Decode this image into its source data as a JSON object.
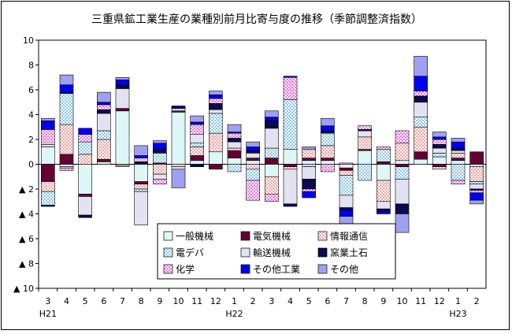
{
  "chart_data": {
    "type": "bar",
    "stacked": true,
    "title": "三重県鉱工業生産の業種別前月比寄与度の推移（季節調整済指数）",
    "categories": [
      "3",
      "4",
      "5",
      "6",
      "7",
      "8",
      "9",
      "10",
      "11",
      "12",
      "1",
      "2",
      "3",
      "4",
      "5",
      "6",
      "7",
      "8",
      "9",
      "10",
      "11",
      "12",
      "1",
      "2"
    ],
    "year_labels": [
      {
        "index": 0,
        "label": "H21"
      },
      {
        "index": 10,
        "label": "H22"
      },
      {
        "index": 22,
        "label": "H23"
      }
    ],
    "ylim": [
      -10,
      10
    ],
    "yticks": [
      {
        "value": 10,
        "label": "10"
      },
      {
        "value": 8,
        "label": "8"
      },
      {
        "value": 6,
        "label": "6"
      },
      {
        "value": 4,
        "label": "4"
      },
      {
        "value": 2,
        "label": "2"
      },
      {
        "value": 0,
        "label": "0"
      },
      {
        "value": -2,
        "label": "▲ 2"
      },
      {
        "value": -4,
        "label": "▲ 4"
      },
      {
        "value": -6,
        "label": "▲ 6"
      },
      {
        "value": -8,
        "label": "▲ 8"
      },
      {
        "value": -10,
        "label": "▲ 10"
      }
    ],
    "grid": false,
    "legend_position": "bottom-center",
    "series": [
      {
        "name": "一般機械",
        "color": "#DDF6F6",
        "pattern": "solid",
        "values": [
          1.4,
          -0.2,
          -2.4,
          0.2,
          4.3,
          -1.4,
          0,
          4.2,
          0.3,
          1.0,
          0.5,
          0.3,
          -1.0,
          1.2,
          0.3,
          0.3,
          -0.3,
          1.1,
          -1.3,
          0.3,
          0.4,
          0.6,
          0.3,
          -0.2
        ]
      },
      {
        "name": "電気機械",
        "color": "#660033",
        "pattern": "solid",
        "values": [
          -1.4,
          0.8,
          -0.2,
          0.2,
          0.2,
          -0.2,
          0.1,
          0.1,
          0.4,
          -0.4,
          0.6,
          0.2,
          0.5,
          -0.2,
          0.2,
          0.2,
          -0.2,
          0.1,
          0.2,
          -0.2,
          0.6,
          -0.2,
          0.2,
          1.0
        ]
      },
      {
        "name": "情報通信",
        "color": "#F4A3A3",
        "pattern": "checker",
        "values": [
          -0.8,
          2.4,
          0.8,
          1.6,
          -0.1,
          -0.4,
          -0.8,
          -0.2,
          0.7,
          1.5,
          0.2,
          -0.4,
          -1.4,
          -0.2,
          0.7,
          1.0,
          -0.4,
          1.0,
          -1.7,
          1.4,
          2.0,
          -0.2,
          0.4,
          -1.2
        ]
      },
      {
        "name": "電デバ",
        "color": "#8CC8EE",
        "pattern": "checker",
        "values": [
          -1.1,
          2.5,
          1.0,
          0.7,
          -0.1,
          -0.2,
          0.8,
          0.2,
          0.3,
          1.6,
          -0.6,
          -0.9,
          0.8,
          4.0,
          -0.2,
          1.0,
          -1.6,
          -1.3,
          1.0,
          -1.0,
          0.8,
          0.3,
          -1.3,
          -0.2
        ]
      },
      {
        "name": "輸送機械",
        "color": "#E2E2F0",
        "pattern": "solid",
        "values": [
          0.2,
          -0.1,
          -1.5,
          1.4,
          1.6,
          -2.7,
          -0.4,
          -0.2,
          0.7,
          0.3,
          0.5,
          0.4,
          1.6,
          -2.8,
          -1.0,
          0,
          -1.0,
          0.5,
          -0.6,
          -2.0,
          1.2,
          0.4,
          0.2,
          -0.4
        ]
      },
      {
        "name": "窯業土石",
        "color": "#0A0A50",
        "pattern": "solid",
        "values": [
          -0.1,
          0.1,
          -0.2,
          0.3,
          0.3,
          0.2,
          0.3,
          0.1,
          -0.2,
          0.5,
          0.3,
          0.2,
          0.6,
          -0.2,
          -0.8,
          0.2,
          -0.2,
          0.1,
          -0.2,
          -0.8,
          0.5,
          0.3,
          0.2,
          -0.1
        ]
      },
      {
        "name": "化学",
        "color": "#F070E0",
        "pattern": "checker",
        "values": [
          1.2,
          -0.2,
          0.6,
          0.4,
          0,
          0.3,
          -0.4,
          0,
          0.8,
          0.4,
          0.4,
          -1.6,
          -0.6,
          1.8,
          -0.2,
          -0.6,
          0.1,
          0.3,
          0.2,
          1.0,
          0.4,
          0.4,
          -0.3,
          -0.2
        ]
      },
      {
        "name": "その他工業",
        "color": "#0000F0",
        "pattern": "solid",
        "values": [
          0.7,
          0.6,
          0.5,
          0.2,
          0.4,
          0.2,
          0.5,
          0.1,
          0.2,
          0.3,
          0.1,
          0.3,
          0.3,
          0.1,
          -0.5,
          0.4,
          -0.5,
          0,
          -0.2,
          0,
          1.2,
          0.2,
          0.5,
          -0.6
        ]
      },
      {
        "name": "その他",
        "color": "#A0A0F0",
        "pattern": "solid",
        "values": [
          0.2,
          0.8,
          0,
          0.8,
          0.2,
          0.8,
          0.2,
          -1.5,
          0.5,
          0.3,
          0.6,
          0.4,
          0.5,
          0,
          0.2,
          0.6,
          -1.0,
          0,
          0,
          -1.5,
          1.6,
          0.4,
          0.3,
          -0.3
        ]
      }
    ]
  }
}
